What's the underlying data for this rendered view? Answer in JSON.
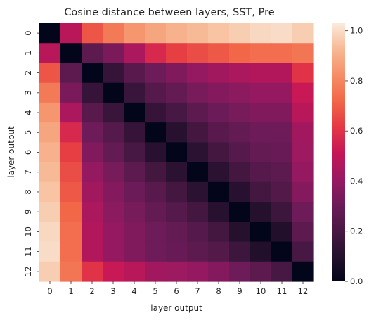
{
  "chart_data": {
    "type": "heatmap",
    "title": "Cosine distance between layers, SST, Pre",
    "xlabel": "layer output",
    "ylabel": "layer output",
    "x_categories": [
      "0",
      "1",
      "2",
      "3",
      "4",
      "5",
      "6",
      "7",
      "8",
      "9",
      "10",
      "11",
      "12"
    ],
    "y_categories": [
      "0",
      "1",
      "2",
      "3",
      "4",
      "5",
      "6",
      "7",
      "8",
      "9",
      "10",
      "11",
      "12"
    ],
    "values": [
      [
        0.0,
        0.48,
        0.68,
        0.77,
        0.84,
        0.88,
        0.91,
        0.93,
        0.95,
        0.97,
        0.99,
        1.0,
        0.97
      ],
      [
        0.48,
        0.0,
        0.26,
        0.34,
        0.45,
        0.57,
        0.63,
        0.66,
        0.69,
        0.72,
        0.74,
        0.74,
        0.76
      ],
      [
        0.68,
        0.26,
        0.0,
        0.15,
        0.25,
        0.31,
        0.35,
        0.4,
        0.43,
        0.45,
        0.47,
        0.47,
        0.6
      ],
      [
        0.77,
        0.34,
        0.15,
        0.0,
        0.16,
        0.24,
        0.28,
        0.33,
        0.36,
        0.38,
        0.4,
        0.4,
        0.52
      ],
      [
        0.84,
        0.45,
        0.25,
        0.16,
        0.0,
        0.15,
        0.2,
        0.26,
        0.3,
        0.33,
        0.35,
        0.35,
        0.48
      ],
      [
        0.88,
        0.57,
        0.31,
        0.24,
        0.15,
        0.0,
        0.11,
        0.19,
        0.25,
        0.28,
        0.31,
        0.31,
        0.43
      ],
      [
        0.91,
        0.63,
        0.35,
        0.28,
        0.2,
        0.11,
        0.0,
        0.12,
        0.19,
        0.24,
        0.28,
        0.29,
        0.42
      ],
      [
        0.93,
        0.66,
        0.4,
        0.33,
        0.26,
        0.19,
        0.12,
        0.0,
        0.12,
        0.19,
        0.24,
        0.26,
        0.4
      ],
      [
        0.95,
        0.69,
        0.43,
        0.36,
        0.3,
        0.25,
        0.19,
        0.12,
        0.0,
        0.11,
        0.19,
        0.23,
        0.36
      ],
      [
        0.97,
        0.72,
        0.45,
        0.38,
        0.33,
        0.28,
        0.24,
        0.19,
        0.11,
        0.0,
        0.1,
        0.17,
        0.31
      ],
      [
        0.99,
        0.74,
        0.47,
        0.4,
        0.35,
        0.31,
        0.28,
        0.24,
        0.19,
        0.1,
        0.0,
        0.09,
        0.26
      ],
      [
        1.0,
        0.74,
        0.47,
        0.4,
        0.35,
        0.31,
        0.29,
        0.26,
        0.23,
        0.17,
        0.09,
        0.0,
        0.2
      ],
      [
        0.97,
        0.76,
        0.6,
        0.52,
        0.48,
        0.43,
        0.42,
        0.4,
        0.36,
        0.31,
        0.26,
        0.2,
        0.0
      ]
    ],
    "colorbar": {
      "min": 0.0,
      "max": 1.03,
      "ticks": [
        "0.0",
        "0.2",
        "0.4",
        "0.6",
        "0.8",
        "1.0"
      ],
      "tick_values": [
        0.0,
        0.2,
        0.4,
        0.6,
        0.8,
        1.0
      ]
    },
    "colormap": "rocket",
    "grid": false
  }
}
